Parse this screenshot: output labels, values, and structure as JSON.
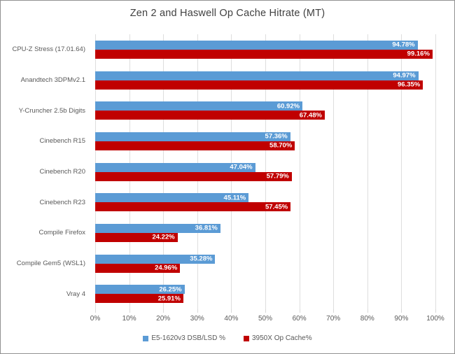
{
  "chart_data": {
    "type": "bar",
    "orientation": "horizontal",
    "title": "Zen 2 and Haswell Op Cache Hitrate (MT)",
    "categories": [
      "CPU-Z Stress (17.01.64)",
      "Anandtech 3DPMv2.1",
      "Y-Cruncher 2.5b Digits",
      "Cinebench R15",
      "Cinebench R20",
      "Cinebench R23",
      "Compile Firefox",
      "Compile Gem5 (WSL1)",
      "Vray 4"
    ],
    "series": [
      {
        "name": "E5-1620v3 DSB/LSD %",
        "color": "#5B9BD5",
        "values": [
          94.78,
          94.97,
          60.92,
          57.36,
          47.04,
          45.11,
          36.81,
          35.28,
          26.25
        ],
        "labels": [
          "94.78%",
          "94.97%",
          "60.92%",
          "57.36%",
          "47.04%",
          "45.11%",
          "36.81%",
          "35.28%",
          "26.25%"
        ]
      },
      {
        "name": "3950X Op Cache%",
        "color": "#C00000",
        "values": [
          99.16,
          96.35,
          67.48,
          58.7,
          57.79,
          57.45,
          24.22,
          24.96,
          25.91
        ],
        "labels": [
          "99.16%",
          "96.35%",
          "67.48%",
          "58.70%",
          "57.79%",
          "57.45%",
          "24.22%",
          "24.96%",
          "25.91%"
        ]
      }
    ],
    "x_ticks": [
      "0%",
      "10%",
      "20%",
      "30%",
      "40%",
      "50%",
      "60%",
      "70%",
      "80%",
      "90%",
      "100%"
    ],
    "xlim": [
      0,
      100
    ],
    "grid": "vertical",
    "gridline_color": "#DEDEDE",
    "legend_position": "bottom",
    "value_labels_position": "inside-end",
    "value_label_color": "#FFFFFF",
    "text_color": "#595959",
    "title_color": "#404040",
    "border_color": "#919191"
  }
}
